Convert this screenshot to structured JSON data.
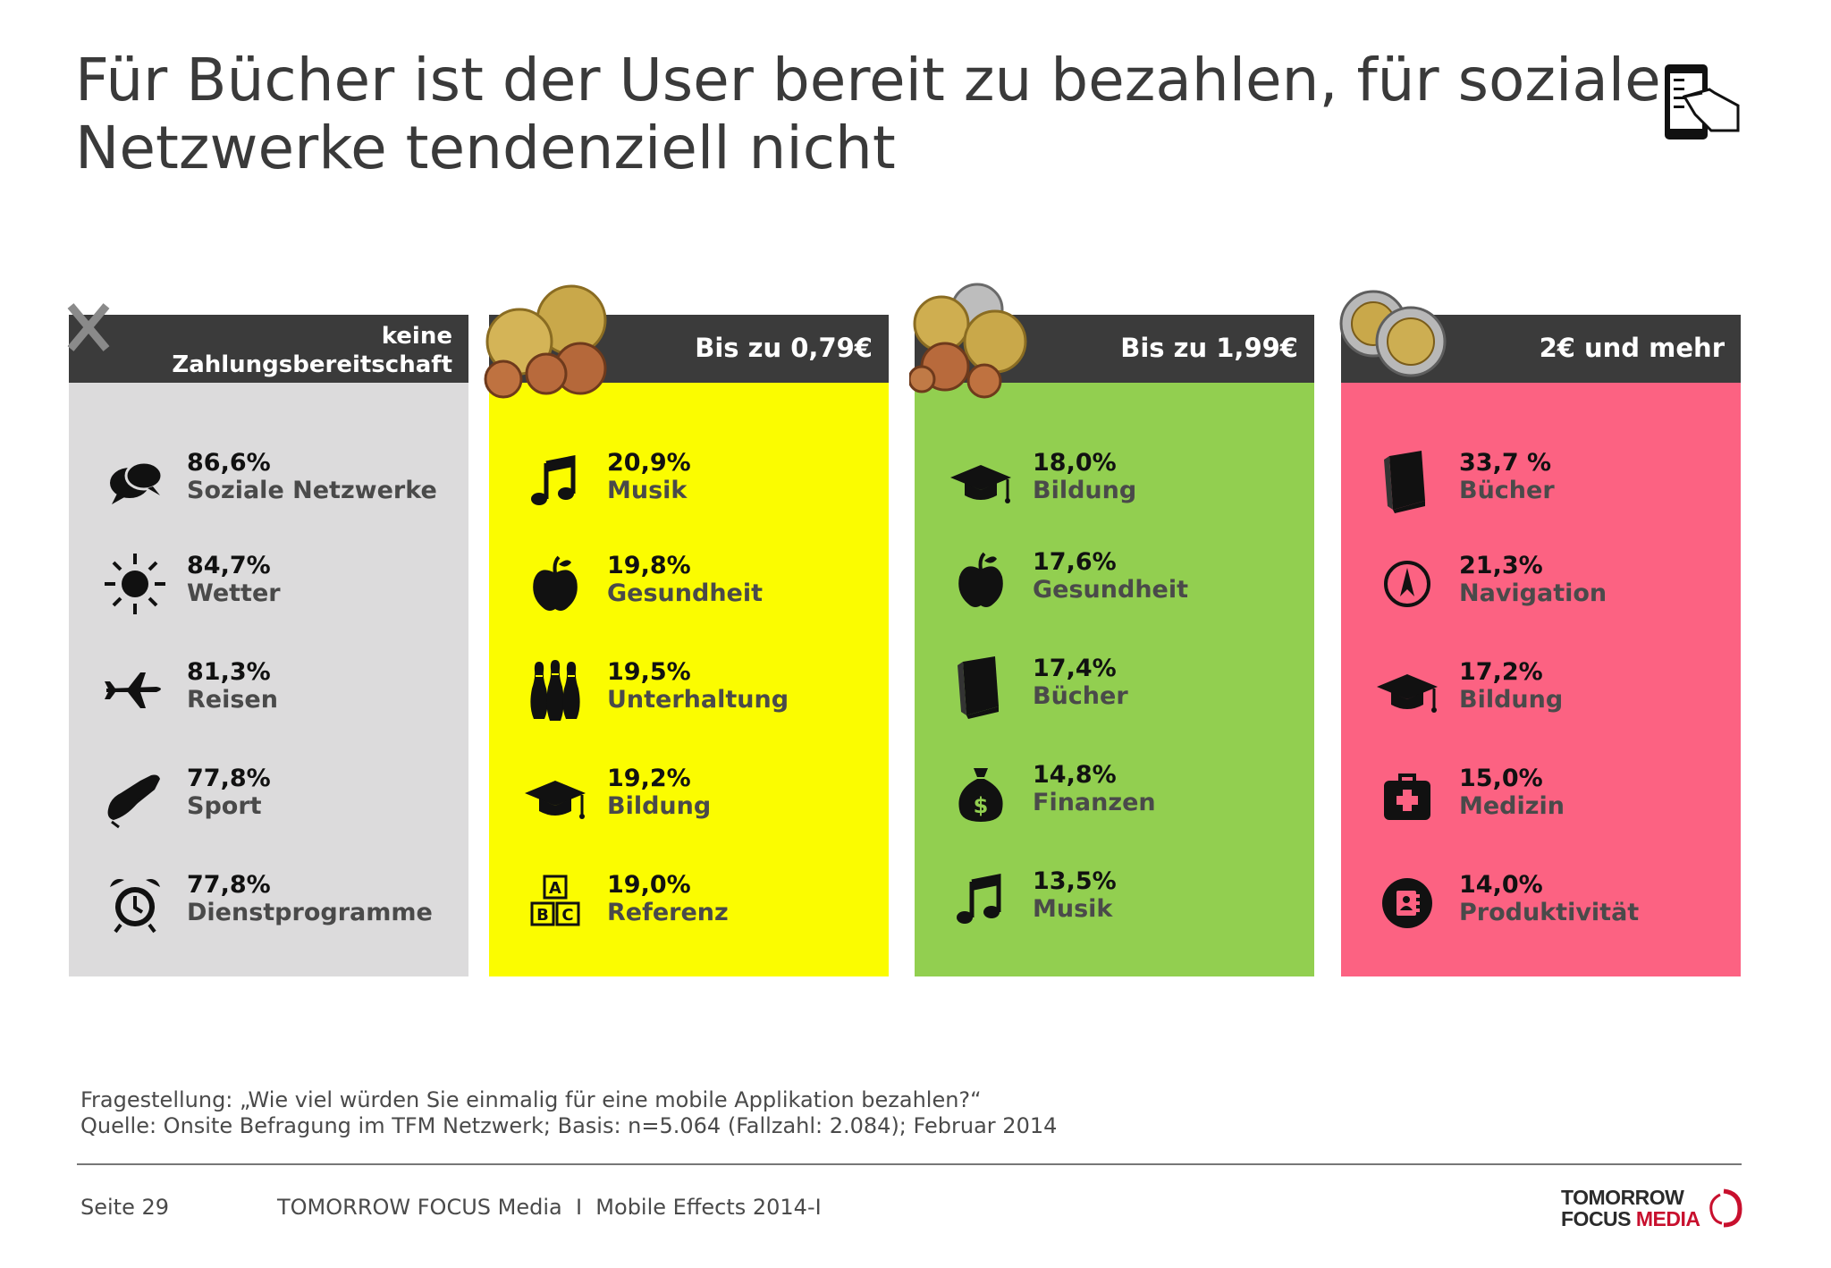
{
  "title": {
    "line1": "Für Bücher ist der User bereit zu bezahlen, für soziale",
    "line2": "Netzwerke tendenziell nicht"
  },
  "header_icon": "smartphone-hand-icon",
  "columns": [
    {
      "id": "keine",
      "header_line1": "keine",
      "header_line2": "Zahlungsbereitschaft",
      "color": "#dcdbdc",
      "entries": [
        {
          "percent": "86,6%",
          "category": "Soziale Netzwerke",
          "icon": "speech-bubbles-icon"
        },
        {
          "percent": "84,7%",
          "category": "Wetter",
          "icon": "sun-icon"
        },
        {
          "percent": "81,3%",
          "category": "Reisen",
          "icon": "airplane-icon"
        },
        {
          "percent": "77,8%",
          "category": "Sport",
          "icon": "sneaker-icon"
        },
        {
          "percent": "77,8%",
          "category": "Dienstprogramme",
          "icon": "alarm-clock-icon"
        }
      ]
    },
    {
      "id": "bis079",
      "header": "Bis zu 0,79€",
      "color": "#fbfc00",
      "entries": [
        {
          "percent": "20,9%",
          "category": "Musik",
          "icon": "music-note-icon"
        },
        {
          "percent": "19,8%",
          "category": "Gesundheit",
          "icon": "apple-icon"
        },
        {
          "percent": "19,5%",
          "category": "Unterhaltung",
          "icon": "bowling-pins-icon"
        },
        {
          "percent": "19,2%",
          "category": "Bildung",
          "icon": "graduation-cap-icon"
        },
        {
          "percent": "19,0%",
          "category": "Referenz",
          "icon": "abc-blocks-icon"
        }
      ]
    },
    {
      "id": "bis199",
      "header": "Bis zu 1,99€",
      "color": "#92cf50",
      "entries": [
        {
          "percent": "18,0%",
          "category": "Bildung",
          "icon": "graduation-cap-icon"
        },
        {
          "percent": "17,6%",
          "category": "Gesundheit",
          "icon": "apple-icon"
        },
        {
          "percent": "17,4%",
          "category": "Bücher",
          "icon": "book-icon"
        },
        {
          "percent": "14,8%",
          "category": "Finanzen",
          "icon": "money-bag-icon"
        },
        {
          "percent": "13,5%",
          "category": "Musik",
          "icon": "music-note-icon"
        }
      ]
    },
    {
      "id": "ab2",
      "header": "2€ und mehr",
      "color": "#fc6282",
      "entries": [
        {
          "percent": "33,7 %",
          "category": "Bücher",
          "icon": "book-icon"
        },
        {
          "percent": "21,3%",
          "category": "Navigation",
          "icon": "compass-icon"
        },
        {
          "percent": "17,2%",
          "category": "Bildung",
          "icon": "graduation-cap-icon"
        },
        {
          "percent": "15,0%",
          "category": "Medizin",
          "icon": "first-aid-kit-icon"
        },
        {
          "percent": "14,0%",
          "category": "Produktivität",
          "icon": "contacts-icon"
        }
      ]
    }
  ],
  "footnote": {
    "question": "Fragestellung: „Wie viel würden Sie einmalig für eine mobile Applikation bezahlen?“",
    "source": "Quelle: Onsite Befragung im TFM Netzwerk; Basis: n=5.064 (Fallzahl: 2.084); Februar 2014"
  },
  "footer": {
    "page": "Seite 29",
    "publication": "TOMORROW FOCUS Media  I  Mobile Effects 2014-I",
    "logo_line1": "TOMORROW",
    "logo_line2_a": "FOCUS ",
    "logo_line2_b": "MEDIA"
  }
}
